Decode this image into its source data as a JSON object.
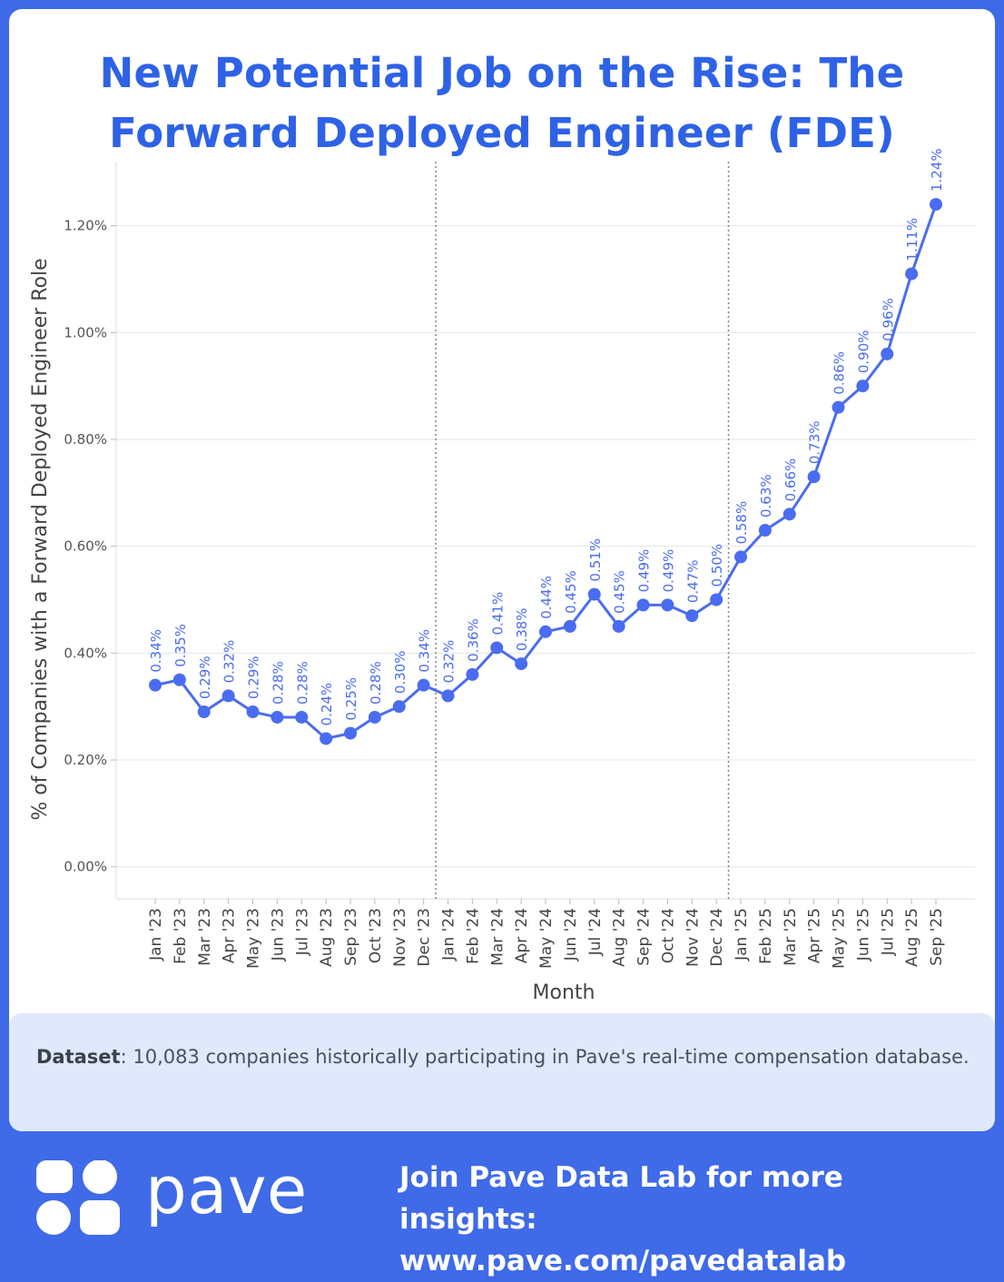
{
  "title_line1": "New Potential Job on the Rise: The",
  "title_line2": "Forward Deployed Engineer (FDE)",
  "colors": {
    "accent": "#2e62e6",
    "line": "#4a6cf0",
    "background": "#3f6ae8"
  },
  "chart_data": {
    "type": "line",
    "xlabel": "Month",
    "ylabel": "% of Companies with a Forward Deployed Engineer Role",
    "ylim": [
      -0.06,
      1.32
    ],
    "yticks": [
      0.0,
      0.2,
      0.4,
      0.6,
      0.8,
      1.0,
      1.2
    ],
    "ytick_labels": [
      "0.00%",
      "0.20%",
      "0.40%",
      "0.60%",
      "0.80%",
      "1.00%",
      "1.20%"
    ],
    "categories": [
      "Jan '23",
      "Feb '23",
      "Mar '23",
      "Apr '23",
      "May '23",
      "Jun '23",
      "Jul '23",
      "Aug '23",
      "Sep '23",
      "Oct '23",
      "Nov '23",
      "Dec '23",
      "Jan '24",
      "Feb '24",
      "Mar '24",
      "Apr '24",
      "May '24",
      "Jun '24",
      "Jul '24",
      "Aug '24",
      "Sep '24",
      "Oct '24",
      "Nov '24",
      "Dec '24",
      "Jan '25",
      "Feb '25",
      "Mar '25",
      "Apr '25",
      "May '25",
      "Jun '25",
      "Jul '25",
      "Aug '25",
      "Sep '25"
    ],
    "values": [
      0.34,
      0.35,
      0.29,
      0.32,
      0.29,
      0.28,
      0.28,
      0.24,
      0.25,
      0.28,
      0.3,
      0.34,
      0.32,
      0.36,
      0.41,
      0.38,
      0.44,
      0.45,
      0.51,
      0.45,
      0.49,
      0.49,
      0.47,
      0.5,
      0.58,
      0.63,
      0.66,
      0.73,
      0.86,
      0.9,
      0.96,
      1.11,
      1.24
    ],
    "labels": [
      "0.34%",
      "0.35%",
      "0.29%",
      "0.32%",
      "0.29%",
      "0.28%",
      "0.28%",
      "0.24%",
      "0.25%",
      "0.28%",
      "0.30%",
      "0.34%",
      "0.32%",
      "0.36%",
      "0.41%",
      "0.38%",
      "0.44%",
      "0.45%",
      "0.51%",
      "0.45%",
      "0.49%",
      "0.49%",
      "0.47%",
      "0.50%",
      "0.58%",
      "0.63%",
      "0.66%",
      "0.73%",
      "0.86%",
      "0.90%",
      "0.96%",
      "1.11%",
      "1.24%"
    ],
    "year_dividers_after": [
      "Dec '23",
      "Dec '24"
    ],
    "grid": "horizontal"
  },
  "note": {
    "label": "Dataset",
    "text": ": 10,083 companies historically participating in Pave's real-time compensation database."
  },
  "footer": {
    "logo_text": "pave",
    "cta_line1": "Join Pave Data Lab for more insights:",
    "cta_line2": "www.pave.com/pavedatalab"
  }
}
